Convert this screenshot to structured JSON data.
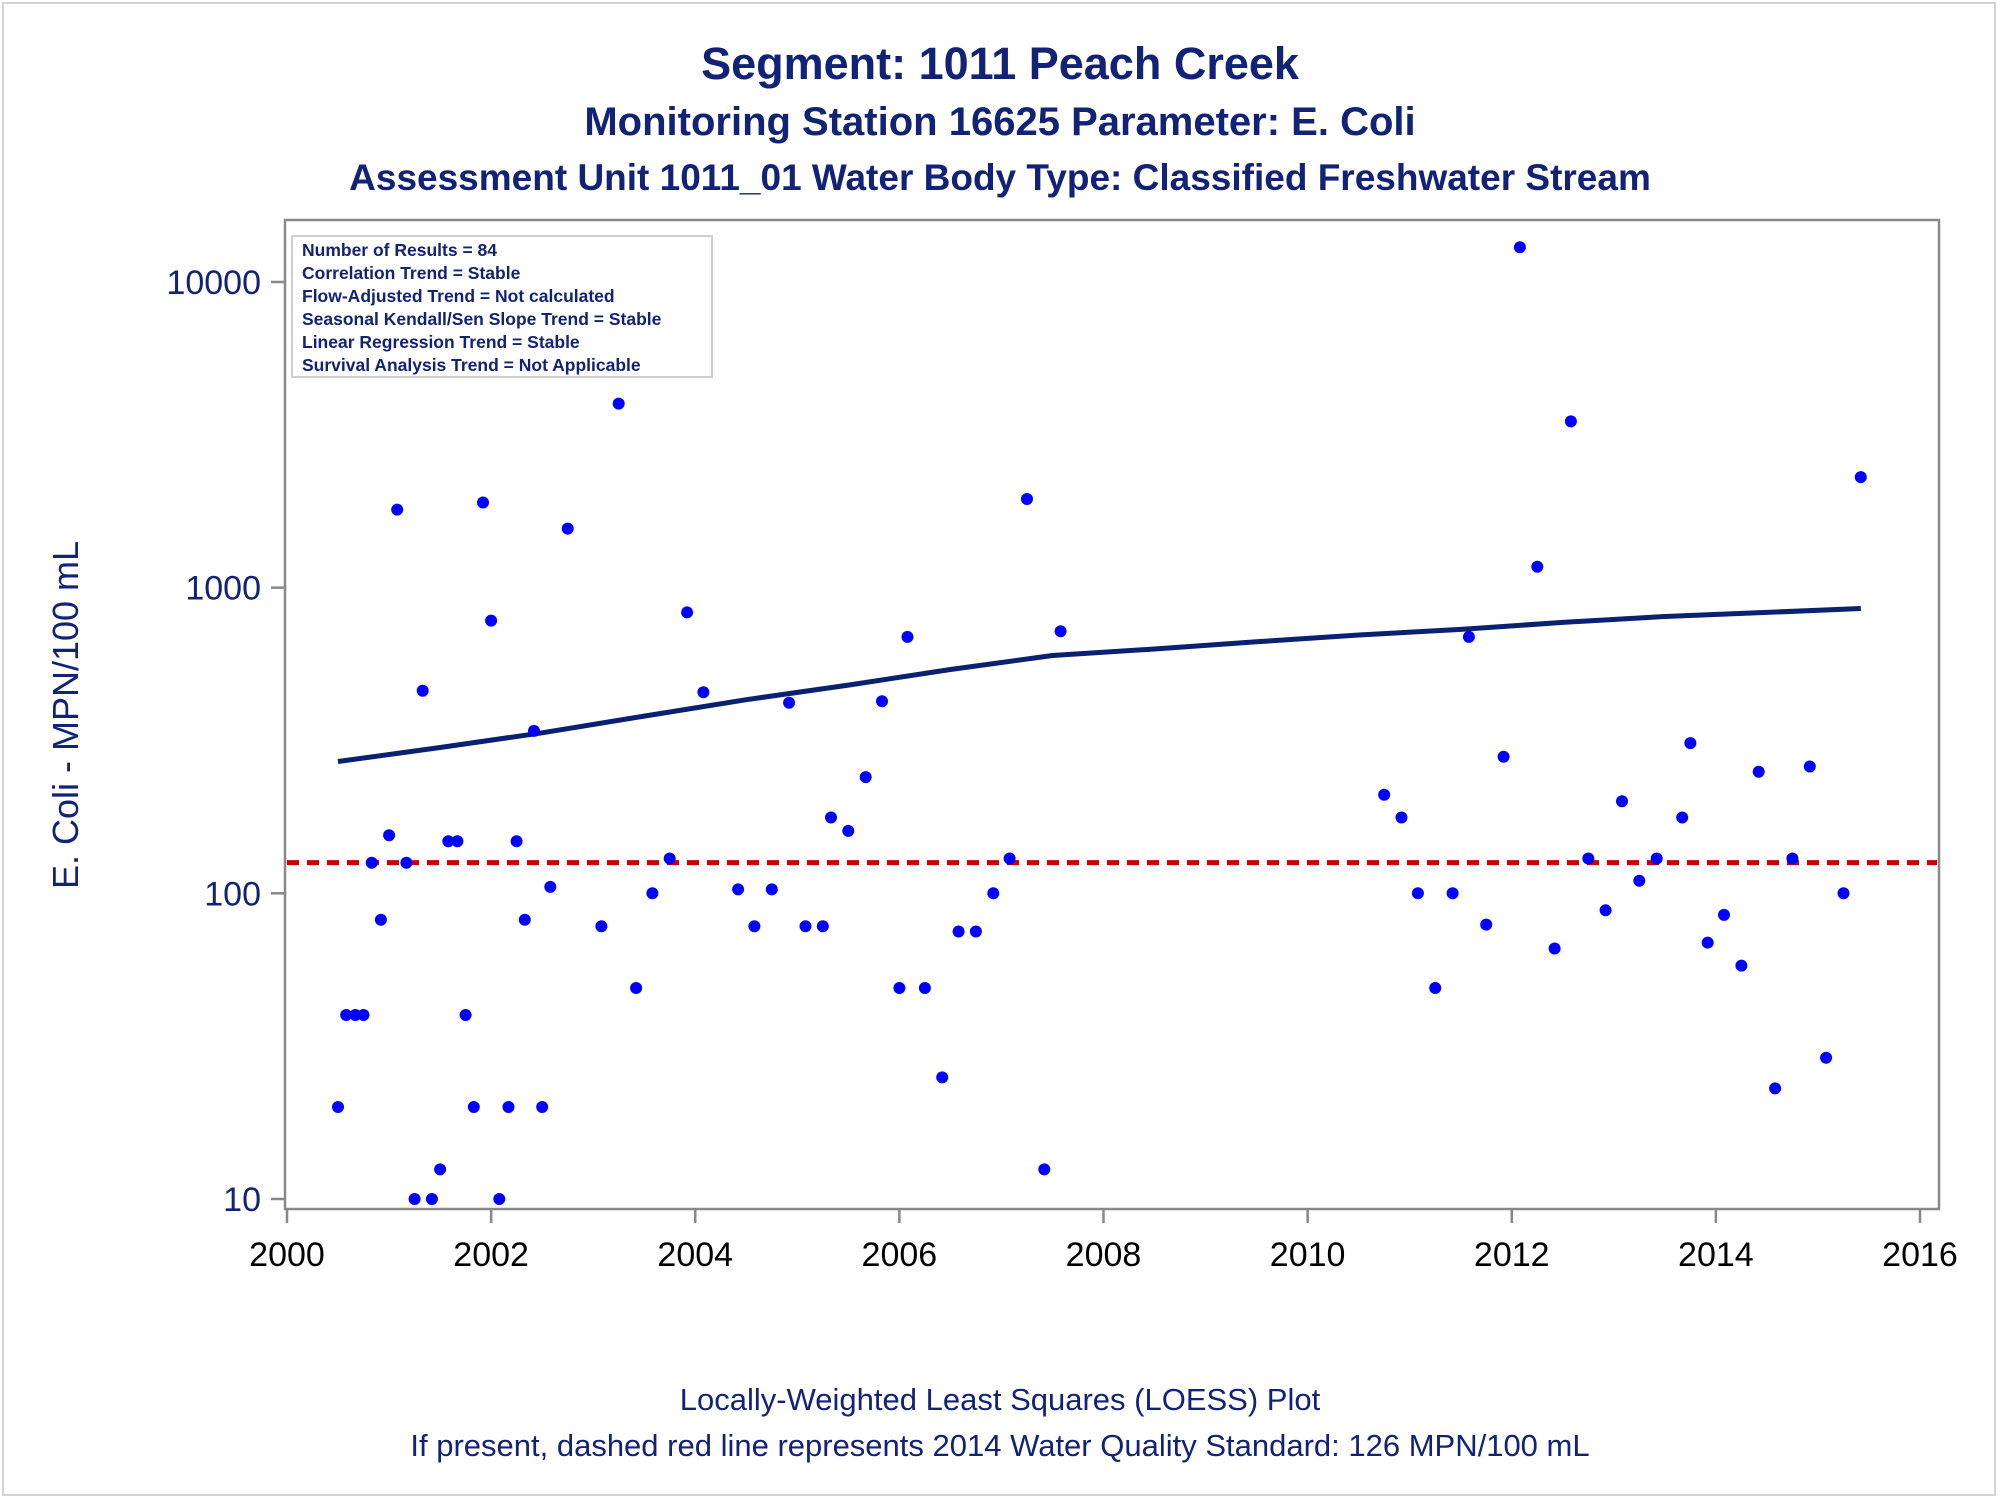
{
  "chart_data": {
    "type": "scatter",
    "title": "Segment: 1011  Peach Creek",
    "subtitle": "Monitoring Station 16625 Parameter: E. Coli",
    "subtitle2": "Assessment Unit 1011_01   Water Body Type: Classified Freshwater Stream",
    "ylabel": "E. Coli - MPN/100 mL",
    "xlabel": "",
    "footnote1": "Locally-Weighted Least Squares (LOESS) Plot",
    "footnote2": "If present, dashed red line represents 2014 Water Quality Standard: 126 MPN/100 mL",
    "y_scale": "log",
    "xlim": [
      2000,
      2016
    ],
    "ylim": [
      10,
      13000
    ],
    "x_ticks": [
      "2000",
      "2002",
      "2004",
      "2006",
      "2008",
      "2010",
      "2012",
      "2014",
      "2016"
    ],
    "y_ticks": [
      "10",
      "100",
      "1000",
      "10000"
    ],
    "y_tick_values": [
      10,
      100,
      1000,
      10000
    ],
    "grid": false,
    "legend_position": "top-left",
    "inset_lines": [
      "Number of Results = 84",
      "Correlation Trend = Stable",
      "Flow-Adjusted Trend = Not calculated",
      "Seasonal Kendall/Sen Slope Trend = Stable",
      "Linear Regression Trend = Stable",
      "Survival Analysis Trend = Not Applicable"
    ],
    "standard_value": 126,
    "colors": {
      "points": "#0000ff",
      "loess": "#0a2070",
      "standard": "#cc0000",
      "text": "#112277",
      "axis": "#888888"
    },
    "series": [
      {
        "type": "scatter",
        "points": [
          [
            2000.5,
            20
          ],
          [
            2000.58,
            40
          ],
          [
            2000.67,
            40
          ],
          [
            2000.75,
            40
          ],
          [
            2000.83,
            126
          ],
          [
            2000.92,
            82
          ],
          [
            2001.0,
            155
          ],
          [
            2001.08,
            1800
          ],
          [
            2001.17,
            126
          ],
          [
            2001.25,
            10
          ],
          [
            2001.33,
            460
          ],
          [
            2001.42,
            10
          ],
          [
            2001.5,
            12.5
          ],
          [
            2001.58,
            148
          ],
          [
            2001.67,
            148
          ],
          [
            2001.75,
            40
          ],
          [
            2001.83,
            20
          ],
          [
            2001.92,
            1900
          ],
          [
            2002.0,
            780
          ],
          [
            2002.08,
            10
          ],
          [
            2002.17,
            20
          ],
          [
            2002.25,
            148
          ],
          [
            2002.33,
            82
          ],
          [
            2002.42,
            340
          ],
          [
            2002.5,
            20
          ],
          [
            2002.58,
            105
          ],
          [
            2002.75,
            1560
          ],
          [
            2003.08,
            78
          ],
          [
            2003.25,
            4000
          ],
          [
            2003.42,
            49
          ],
          [
            2003.58,
            100
          ],
          [
            2003.75,
            130
          ],
          [
            2003.92,
            830
          ],
          [
            2004.08,
            455
          ],
          [
            2004.42,
            103
          ],
          [
            2004.58,
            78
          ],
          [
            2004.75,
            103
          ],
          [
            2004.92,
            420
          ],
          [
            2005.08,
            78
          ],
          [
            2005.25,
            78
          ],
          [
            2005.33,
            177
          ],
          [
            2005.5,
            160
          ],
          [
            2005.67,
            240
          ],
          [
            2005.83,
            425
          ],
          [
            2006.0,
            49
          ],
          [
            2006.08,
            690
          ],
          [
            2006.25,
            49
          ],
          [
            2006.42,
            25
          ],
          [
            2006.58,
            75
          ],
          [
            2006.75,
            75
          ],
          [
            2006.92,
            100
          ],
          [
            2007.08,
            130
          ],
          [
            2007.25,
            1950
          ],
          [
            2007.42,
            12.5
          ],
          [
            2007.58,
            720
          ],
          [
            2010.75,
            210
          ],
          [
            2010.92,
            177
          ],
          [
            2011.08,
            100
          ],
          [
            2011.25,
            49
          ],
          [
            2011.42,
            100
          ],
          [
            2011.58,
            690
          ],
          [
            2011.75,
            79
          ],
          [
            2011.92,
            280
          ],
          [
            2012.08,
            13000
          ],
          [
            2012.25,
            1170
          ],
          [
            2012.42,
            66
          ],
          [
            2012.58,
            3500
          ],
          [
            2012.75,
            130
          ],
          [
            2012.92,
            88
          ],
          [
            2013.08,
            200
          ],
          [
            2013.25,
            110
          ],
          [
            2013.42,
            130
          ],
          [
            2013.67,
            177
          ],
          [
            2013.75,
            310
          ],
          [
            2013.92,
            69
          ],
          [
            2014.08,
            85
          ],
          [
            2014.25,
            58
          ],
          [
            2014.42,
            250
          ],
          [
            2014.58,
            23
          ],
          [
            2014.75,
            130
          ],
          [
            2014.92,
            260
          ],
          [
            2015.08,
            29
          ],
          [
            2015.25,
            100
          ],
          [
            2015.42,
            2300
          ]
        ]
      },
      {
        "type": "line",
        "points": [
          [
            2000.5,
            270
          ],
          [
            2001.5,
            300
          ],
          [
            2002.5,
            335
          ],
          [
            2003.5,
            380
          ],
          [
            2004.5,
            430
          ],
          [
            2005.5,
            480
          ],
          [
            2006.5,
            540
          ],
          [
            2007.5,
            600
          ],
          [
            2008.5,
            630
          ],
          [
            2009.5,
            665
          ],
          [
            2010.5,
            700
          ],
          [
            2011.5,
            730
          ],
          [
            2012.5,
            770
          ],
          [
            2013.5,
            805
          ],
          [
            2014.5,
            830
          ],
          [
            2015.42,
            855
          ]
        ]
      }
    ]
  }
}
